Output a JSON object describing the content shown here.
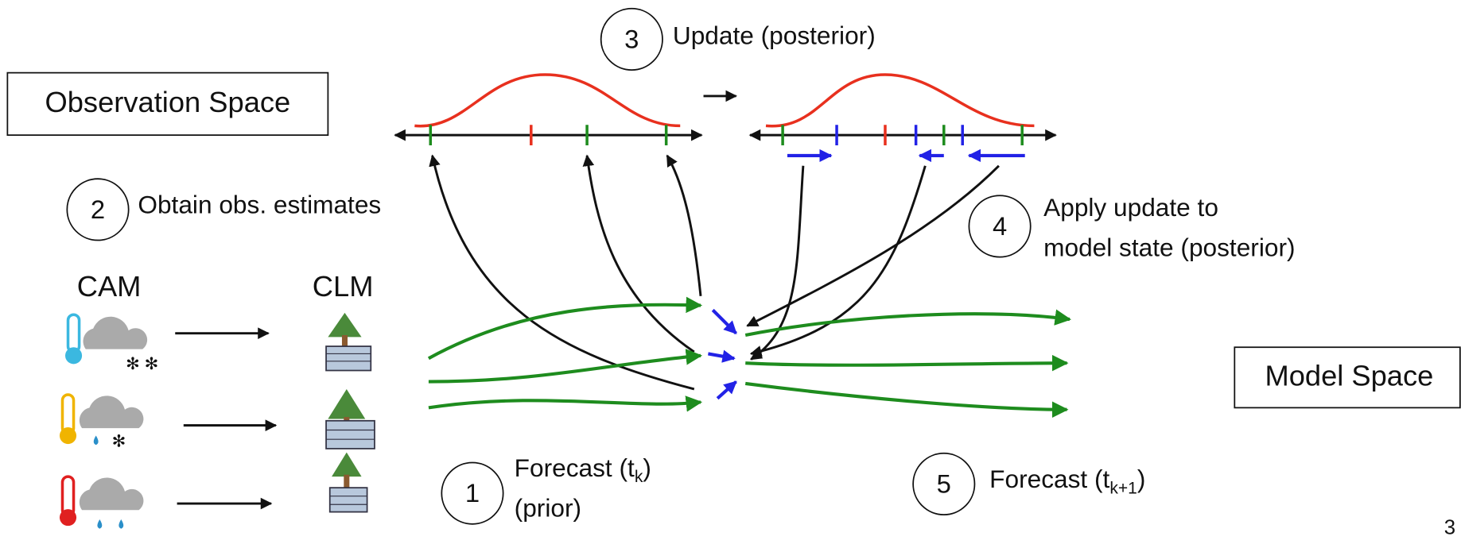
{
  "boxes": {
    "observation_space": "Observation Space",
    "model_space": "Model Space"
  },
  "steps": [
    {
      "number": "1",
      "label": {
        "line1": {
          "text": "Forecast (t",
          "sub": "k",
          "end": ")"
        },
        "line2": "(prior)"
      }
    },
    {
      "number": "2",
      "label": "Obtain obs. estimates"
    },
    {
      "number": "3",
      "label": "Update (posterior)"
    },
    {
      "number": "4",
      "label": {
        "line1": "Apply update to",
        "line2": "model state (posterior)"
      }
    },
    {
      "number": "5",
      "label": {
        "text": "Forecast (t",
        "sub": "k+1",
        "end": ")"
      }
    }
  ],
  "models": {
    "atmosphere": "CAM",
    "land": "CLM"
  },
  "page_number": "3"
}
